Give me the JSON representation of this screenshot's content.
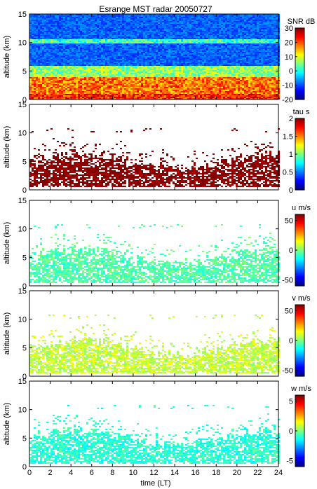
{
  "title": "Esrange MST radar 20050727",
  "xlabel": "time (LT)",
  "x_ticks": [
    "0",
    "2",
    "4",
    "6",
    "8",
    "10",
    "12",
    "14",
    "16",
    "18",
    "20",
    "22",
    "24"
  ],
  "y_ticks": [
    "0",
    "5",
    "10",
    "15"
  ],
  "chart_data": [
    {
      "type": "heatmap",
      "ylabel": "altitude (km)",
      "xlim": [
        0,
        24
      ],
      "ylim": [
        0,
        15
      ],
      "colorbar": {
        "label": "SNR dB",
        "range": [
          -20,
          30
        ],
        "ticks": [
          "30",
          "20",
          "10",
          "0",
          "-10",
          "-20"
        ]
      },
      "fill": "full",
      "layers": [
        {
          "alt": [
            0,
            1.2
          ],
          "snr": 22
        },
        {
          "alt": [
            1.2,
            4
          ],
          "snr": 18
        },
        {
          "alt": [
            4,
            6
          ],
          "snr": 6
        },
        {
          "alt": [
            10,
            10.8
          ],
          "snr": 2
        }
      ]
    },
    {
      "type": "heatmap",
      "ylabel": "altitude (km)",
      "xlim": [
        0,
        24
      ],
      "ylim": [
        0,
        15
      ],
      "colorbar": {
        "label": "tau s",
        "range": [
          0,
          2
        ],
        "ticks": [
          "2",
          "1.5",
          "1",
          "0.5",
          "0"
        ]
      },
      "fill": "echo",
      "typical_value": 2.0
    },
    {
      "type": "heatmap",
      "ylabel": "altitude (km)",
      "xlim": [
        0,
        24
      ],
      "ylim": [
        0,
        15
      ],
      "colorbar": {
        "label": "u m/s",
        "range": [
          -60,
          60
        ],
        "ticks": [
          "50",
          "0",
          "-50"
        ]
      },
      "fill": "echo",
      "typical_value": -5
    },
    {
      "type": "heatmap",
      "ylabel": "altitude (km)",
      "xlim": [
        0,
        24
      ],
      "ylim": [
        0,
        15
      ],
      "colorbar": {
        "label": "v m/s",
        "range": [
          -60,
          60
        ],
        "ticks": [
          "50",
          "0",
          "-50"
        ]
      },
      "fill": "echo",
      "typical_value": 8
    },
    {
      "type": "heatmap",
      "ylabel": "altitude (km)",
      "xlim": [
        0,
        24
      ],
      "ylim": [
        0,
        15
      ],
      "colorbar": {
        "label": "w m/s",
        "range": [
          -6,
          6
        ],
        "ticks": [
          "5",
          "0",
          "-5"
        ]
      },
      "fill": "echo",
      "typical_value": -1
    }
  ]
}
